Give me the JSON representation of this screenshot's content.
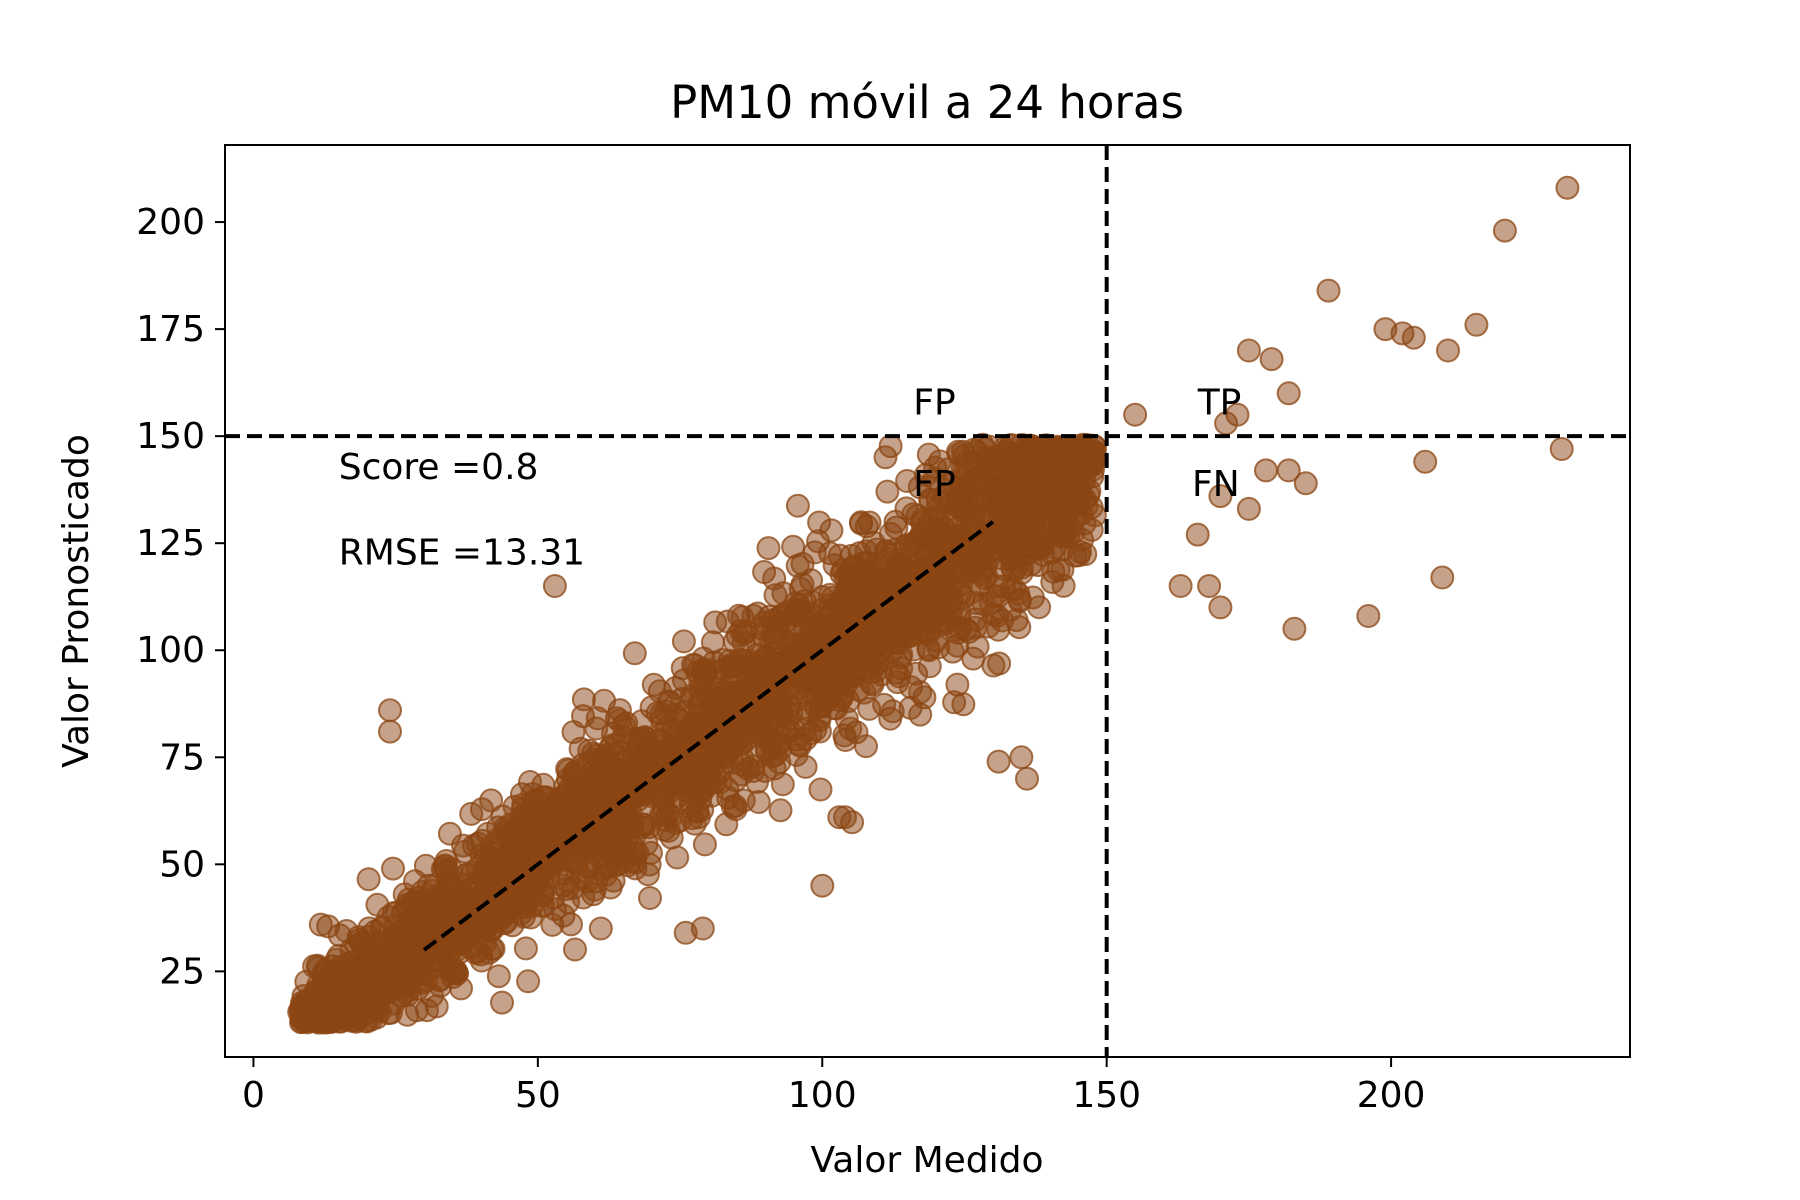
{
  "chart_data": {
    "type": "scatter",
    "title": "PM10 móvil a 24 horas",
    "xlabel": "Valor Medido",
    "ylabel": "Valor Pronosticado",
    "xlim": [
      -5,
      242
    ],
    "ylim": [
      5,
      218
    ],
    "xticks": [
      0,
      50,
      100,
      150,
      200
    ],
    "yticks": [
      25,
      50,
      75,
      100,
      125,
      150,
      175,
      200
    ],
    "grid": false,
    "point_color": "#8B4513",
    "point_opacity": 0.5,
    "threshold_x": 150,
    "threshold_y": 150,
    "trend_line": {
      "x": [
        30,
        130
      ],
      "y": [
        30,
        130
      ]
    },
    "annotations": [
      {
        "text": "FP",
        "x": 116,
        "y": 155
      },
      {
        "text": "FP",
        "x": 116,
        "y": 136
      },
      {
        "text": "TP",
        "x": 166,
        "y": 155
      },
      {
        "text": "FN",
        "x": 165,
        "y": 136
      },
      {
        "text": "Score =0.8",
        "x": 15,
        "y": 140
      },
      {
        "text": "RMSE =13.31",
        "x": 15,
        "y": 120
      }
    ],
    "points_note_outliers": [
      {
        "x": 231,
        "y": 208
      },
      {
        "x": 220,
        "y": 198
      },
      {
        "x": 189,
        "y": 184
      },
      {
        "x": 215,
        "y": 176
      },
      {
        "x": 199,
        "y": 175
      },
      {
        "x": 202,
        "y": 174
      },
      {
        "x": 204,
        "y": 173
      },
      {
        "x": 210,
        "y": 170
      },
      {
        "x": 230,
        "y": 147
      },
      {
        "x": 206,
        "y": 144
      },
      {
        "x": 209,
        "y": 117
      },
      {
        "x": 196,
        "y": 108
      },
      {
        "x": 183,
        "y": 105
      },
      {
        "x": 175,
        "y": 170
      },
      {
        "x": 179,
        "y": 168
      },
      {
        "x": 182,
        "y": 160
      },
      {
        "x": 171,
        "y": 153
      },
      {
        "x": 173,
        "y": 155
      },
      {
        "x": 155,
        "y": 155
      },
      {
        "x": 182,
        "y": 142
      },
      {
        "x": 185,
        "y": 139
      },
      {
        "x": 178,
        "y": 142
      },
      {
        "x": 175,
        "y": 133
      },
      {
        "x": 170,
        "y": 136
      },
      {
        "x": 166,
        "y": 127
      },
      {
        "x": 163,
        "y": 115
      },
      {
        "x": 168,
        "y": 115
      },
      {
        "x": 170,
        "y": 110
      },
      {
        "x": 53,
        "y": 115
      },
      {
        "x": 135,
        "y": 75
      },
      {
        "x": 136,
        "y": 70
      },
      {
        "x": 131,
        "y": 74
      },
      {
        "x": 103,
        "y": 61
      },
      {
        "x": 104,
        "y": 61
      },
      {
        "x": 100,
        "y": 45
      },
      {
        "x": 76,
        "y": 34
      },
      {
        "x": 79,
        "y": 35
      },
      {
        "x": 24,
        "y": 81
      },
      {
        "x": 24,
        "y": 86
      }
    ]
  }
}
